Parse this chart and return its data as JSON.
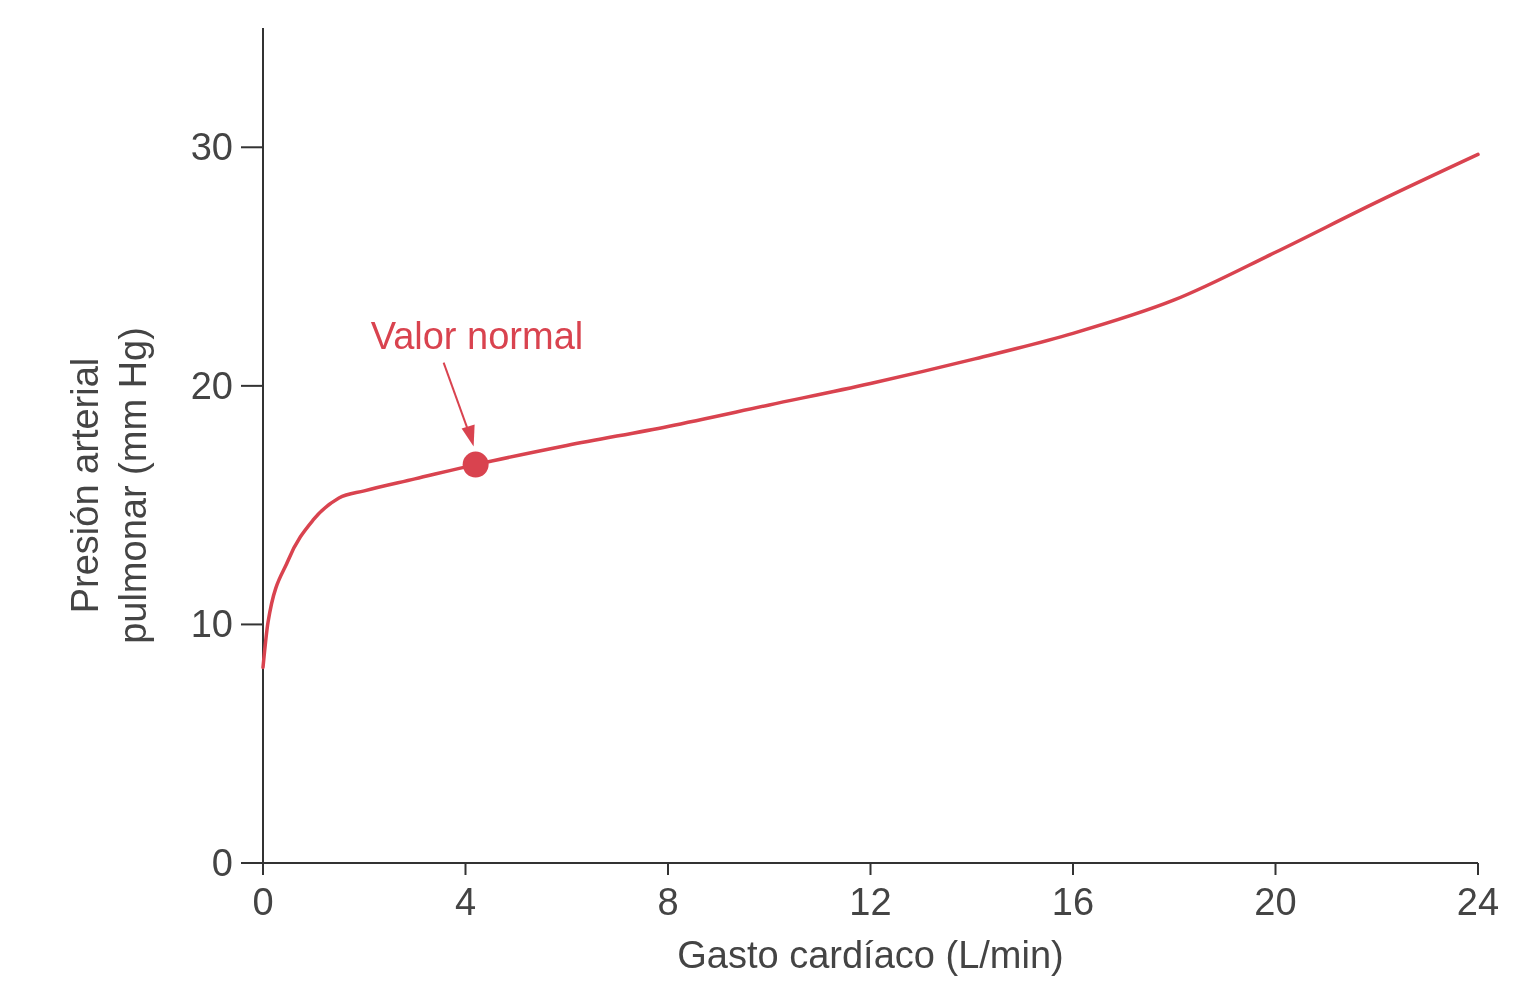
{
  "chart_data": {
    "type": "line",
    "xlabel": "Gasto cardíaco (L/min)",
    "ylabel": "Presión arterial pulmonar  (mm Hg)",
    "xlim": [
      0,
      24
    ],
    "ylim": [
      0,
      35
    ],
    "xticks": [
      0,
      4,
      8,
      12,
      16,
      20,
      24
    ],
    "yticks": [
      0,
      10,
      20,
      30
    ],
    "grid": false,
    "series": [
      {
        "color": "#d9434f",
        "x": [
          0,
          0.1,
          0.5,
          1,
          1.5,
          2,
          3,
          4.2,
          6,
          8,
          10,
          12,
          14,
          16,
          18,
          20,
          22,
          24
        ],
        "values": [
          8.2,
          10.1,
          12.7,
          14.4,
          15.3,
          15.6,
          16.1,
          16.7,
          17.5,
          18.3,
          19.2,
          20.1,
          21.1,
          22.2,
          23.6,
          25.6,
          27.7,
          29.7
        ]
      },
      {
        "type": "scatter",
        "color": "#d9434f",
        "marker": "circle",
        "x": [
          4.2
        ],
        "values": [
          16.7
        ]
      }
    ],
    "annotations": [
      {
        "text": "Valor normal",
        "x": 4.2,
        "y": 16.7
      }
    ]
  }
}
